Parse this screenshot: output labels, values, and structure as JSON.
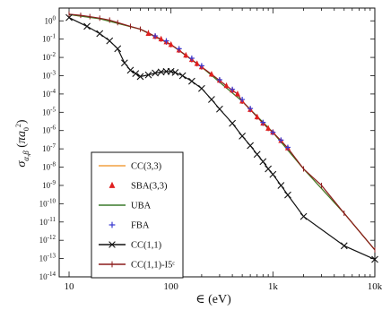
{
  "chart_data": {
    "type": "line",
    "xscale": "log",
    "yscale": "log",
    "xlim": [
      8,
      10000
    ],
    "ylim": [
      1e-14,
      5
    ],
    "xlabel": "∈ (eV)",
    "ylabel": "σα,β (πa0²)",
    "xticks": [
      {
        "value": 10,
        "label": "10"
      },
      {
        "value": 100,
        "label": "100"
      },
      {
        "value": 1000,
        "label": "1k"
      },
      {
        "value": 10000,
        "label": "10k"
      }
    ],
    "yticks": [
      {
        "value": 1,
        "base": "10",
        "exp": "0"
      },
      {
        "value": 0.1,
        "base": "10",
        "exp": "-1"
      },
      {
        "value": 0.01,
        "base": "10",
        "exp": "-2"
      },
      {
        "value": 0.001,
        "base": "10",
        "exp": "-3"
      },
      {
        "value": 0.0001,
        "base": "10",
        "exp": "-4"
      },
      {
        "value": 1e-05,
        "base": "10",
        "exp": "-5"
      },
      {
        "value": 1e-06,
        "base": "10",
        "exp": "-6"
      },
      {
        "value": 1e-07,
        "base": "10",
        "exp": "-7"
      },
      {
        "value": 1e-08,
        "base": "10",
        "exp": "-8"
      },
      {
        "value": 1e-09,
        "base": "10",
        "exp": "-9"
      },
      {
        "value": 1e-10,
        "base": "10",
        "exp": "-10"
      },
      {
        "value": 1e-11,
        "base": "10",
        "exp": "-11"
      },
      {
        "value": 1e-12,
        "base": "10",
        "exp": "-12"
      },
      {
        "value": 1e-13,
        "base": "10",
        "exp": "-13"
      },
      {
        "value": 1e-14,
        "base": "10",
        "exp": "-14"
      }
    ],
    "legend_position": "lower-left",
    "series": [
      {
        "name": "CC(3,3)",
        "style": "line",
        "color": "#f2a040",
        "x": [
          10,
          20,
          50,
          100,
          200,
          500,
          1000,
          2000,
          5000,
          10000
        ],
        "y": [
          2.2,
          1.3,
          0.35,
          0.05,
          0.003,
          4e-05,
          8e-07,
          8e-09,
          3e-11,
          3e-13
        ]
      },
      {
        "name": "SBA(3,3)",
        "style": "marker",
        "marker": "triangle",
        "color": "#e02020",
        "x": [
          60,
          70,
          80,
          90,
          100,
          120,
          140,
          160,
          180,
          200,
          250,
          300,
          350,
          400,
          450,
          500,
          600,
          700,
          800,
          900,
          1000,
          1200,
          1400
        ],
        "y": [
          0.2,
          0.14,
          0.1,
          0.07,
          0.05,
          0.025,
          0.013,
          0.0075,
          0.0045,
          0.003,
          0.0012,
          0.00055,
          0.00028,
          0.00016,
          0.0001,
          4e-05,
          1.4e-05,
          5.5e-06,
          2.5e-06,
          1.3e-06,
          8e-07,
          2.8e-07,
          1.1e-07
        ]
      },
      {
        "name": "UBA",
        "style": "line",
        "color": "#3a7a2a",
        "x": [
          10,
          20,
          50,
          100,
          200,
          500,
          1000,
          2000,
          5000,
          10000
        ],
        "y": [
          2.2,
          1.3,
          0.35,
          0.05,
          0.003,
          4e-05,
          8e-07,
          8e-09,
          3e-11,
          3e-13
        ]
      },
      {
        "name": "FBA",
        "style": "marker",
        "marker": "plus",
        "color": "#3a3ad0",
        "x": [
          70,
          90,
          120,
          160,
          200,
          300,
          400,
          500,
          600,
          800,
          1000,
          1200,
          1400
        ],
        "y": [
          0.15,
          0.08,
          0.03,
          0.009,
          0.0035,
          0.0006,
          0.00018,
          5e-05,
          1.6e-05,
          2.8e-06,
          8e-07,
          3e-07,
          1.2e-07
        ]
      },
      {
        "name": "CC(1,1)",
        "style": "line+marker",
        "marker": "x",
        "color": "#111111",
        "x": [
          10,
          15,
          20,
          25,
          30,
          35,
          40,
          45,
          50,
          60,
          70,
          80,
          90,
          100,
          110,
          130,
          160,
          200,
          250,
          300,
          400,
          500,
          600,
          700,
          800,
          900,
          1000,
          1200,
          1400,
          2000,
          5000,
          10000
        ],
        "y": [
          1.5,
          0.5,
          0.2,
          0.08,
          0.03,
          0.005,
          0.002,
          0.0013,
          0.0009,
          0.0011,
          0.0014,
          0.0016,
          0.0017,
          0.0017,
          0.0015,
          0.001,
          0.0005,
          0.0002,
          5e-05,
          1.5e-05,
          2.5e-06,
          5e-07,
          1.5e-07,
          5e-08,
          2e-08,
          8e-09,
          4e-09,
          1e-09,
          3e-10,
          2e-11,
          5e-13,
          9e-14
        ]
      },
      {
        "name": "CC(1,1)-I5ᶜ",
        "style": "line+marker",
        "marker": "tick",
        "color": "#8b1a1a",
        "x": [
          10,
          13,
          16,
          20,
          25,
          30,
          40,
          50,
          60,
          70,
          80,
          90,
          100,
          120,
          140,
          160,
          180,
          200,
          250,
          300,
          350,
          400,
          450,
          500,
          600,
          700,
          800,
          900,
          1000,
          1200,
          1400,
          2000,
          3000,
          5000,
          10000
        ],
        "y": [
          2.3,
          2.0,
          1.7,
          1.4,
          1.1,
          0.8,
          0.5,
          0.35,
          0.22,
          0.14,
          0.1,
          0.07,
          0.05,
          0.025,
          0.013,
          0.0075,
          0.0045,
          0.003,
          0.0012,
          0.00055,
          0.00028,
          0.00016,
          0.0001,
          4e-05,
          1.4e-05,
          5.5e-06,
          2.5e-06,
          1.3e-06,
          8e-07,
          2.8e-07,
          1.1e-07,
          8e-09,
          1e-09,
          3e-11,
          3e-13
        ]
      }
    ]
  }
}
